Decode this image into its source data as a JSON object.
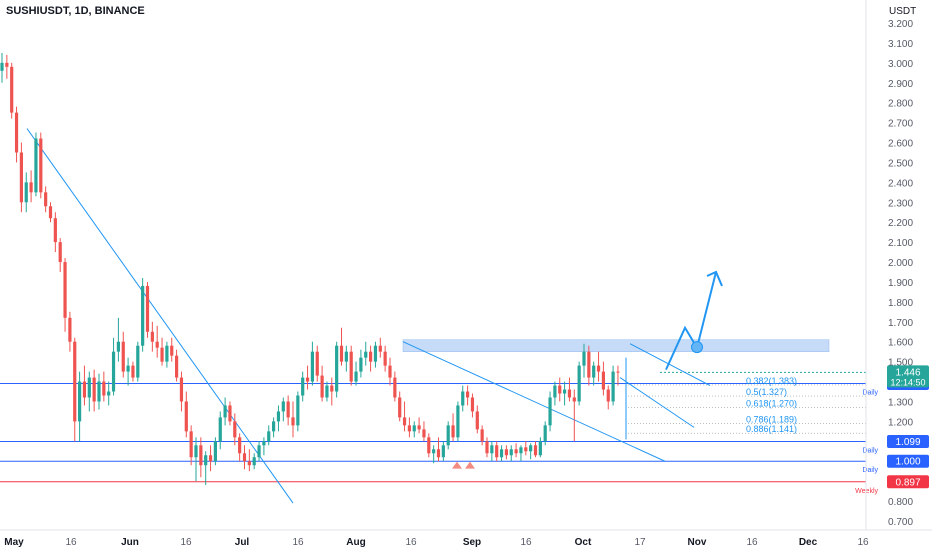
{
  "chart_data": {
    "type": "candlestick",
    "title": "SUSHIUSDT, 1D, BINANCE",
    "currency_label": "USDT",
    "y_range": [
      0.66,
      3.25
    ],
    "y_ticks": [
      "3.200",
      "3.100",
      "3.000",
      "2.900",
      "2.800",
      "2.700",
      "2.600",
      "2.500",
      "2.400",
      "2.300",
      "2.200",
      "2.100",
      "2.000",
      "1.900",
      "1.800",
      "1.700",
      "1.600",
      "1.500",
      "1.400",
      "1.300",
      "1.200",
      "1.100",
      "1.000",
      "0.900",
      "0.800",
      "0.700"
    ],
    "x_ticks": [
      "May",
      "16",
      "Jun",
      "16",
      "Jul",
      "16",
      "Aug",
      "16",
      "Sep",
      "16",
      "Oct",
      "17",
      "Nov",
      "16",
      "Dec",
      "16"
    ],
    "candles": [
      {
        "o": 2.96,
        "h": 3.05,
        "l": 2.9,
        "c": 3.0
      },
      {
        "o": 3.0,
        "h": 3.04,
        "l": 2.92,
        "c": 2.98
      },
      {
        "o": 2.98,
        "h": 3.0,
        "l": 2.72,
        "c": 2.75
      },
      {
        "o": 2.75,
        "h": 2.78,
        "l": 2.5,
        "c": 2.55
      },
      {
        "o": 2.55,
        "h": 2.6,
        "l": 2.25,
        "c": 2.3
      },
      {
        "o": 2.3,
        "h": 2.45,
        "l": 2.25,
        "c": 2.4
      },
      {
        "o": 2.4,
        "h": 2.46,
        "l": 2.3,
        "c": 2.35
      },
      {
        "o": 2.35,
        "h": 2.65,
        "l": 2.33,
        "c": 2.62
      },
      {
        "o": 2.62,
        "h": 2.65,
        "l": 2.32,
        "c": 2.35
      },
      {
        "o": 2.35,
        "h": 2.38,
        "l": 2.25,
        "c": 2.28
      },
      {
        "o": 2.28,
        "h": 2.3,
        "l": 2.2,
        "c": 2.22
      },
      {
        "o": 2.22,
        "h": 2.25,
        "l": 2.05,
        "c": 2.1
      },
      {
        "o": 2.1,
        "h": 2.12,
        "l": 1.95,
        "c": 2.0
      },
      {
        "o": 2.0,
        "h": 2.02,
        "l": 1.65,
        "c": 1.72
      },
      {
        "o": 1.72,
        "h": 1.75,
        "l": 1.55,
        "c": 1.6
      },
      {
        "o": 1.6,
        "h": 1.62,
        "l": 1.1,
        "c": 1.2
      },
      {
        "o": 1.2,
        "h": 1.45,
        "l": 1.1,
        "c": 1.4
      },
      {
        "o": 1.4,
        "h": 1.48,
        "l": 1.28,
        "c": 1.32
      },
      {
        "o": 1.32,
        "h": 1.45,
        "l": 1.25,
        "c": 1.42
      },
      {
        "o": 1.42,
        "h": 1.46,
        "l": 1.25,
        "c": 1.3
      },
      {
        "o": 1.3,
        "h": 1.44,
        "l": 1.26,
        "c": 1.4
      },
      {
        "o": 1.4,
        "h": 1.45,
        "l": 1.3,
        "c": 1.33
      },
      {
        "o": 1.33,
        "h": 1.4,
        "l": 1.28,
        "c": 1.35
      },
      {
        "o": 1.35,
        "h": 1.62,
        "l": 1.33,
        "c": 1.55
      },
      {
        "o": 1.55,
        "h": 1.72,
        "l": 1.5,
        "c": 1.6
      },
      {
        "o": 1.6,
        "h": 1.65,
        "l": 1.42,
        "c": 1.45
      },
      {
        "o": 1.45,
        "h": 1.52,
        "l": 1.38,
        "c": 1.48
      },
      {
        "o": 1.48,
        "h": 1.5,
        "l": 1.4,
        "c": 1.42
      },
      {
        "o": 1.42,
        "h": 1.6,
        "l": 1.4,
        "c": 1.58
      },
      {
        "o": 1.58,
        "h": 1.92,
        "l": 1.55,
        "c": 1.88
      },
      {
        "o": 1.88,
        "h": 1.9,
        "l": 1.62,
        "c": 1.65
      },
      {
        "o": 1.65,
        "h": 1.7,
        "l": 1.55,
        "c": 1.6
      },
      {
        "o": 1.6,
        "h": 1.68,
        "l": 1.52,
        "c": 1.57
      },
      {
        "o": 1.57,
        "h": 1.62,
        "l": 1.48,
        "c": 1.5
      },
      {
        "o": 1.5,
        "h": 1.6,
        "l": 1.47,
        "c": 1.58
      },
      {
        "o": 1.58,
        "h": 1.62,
        "l": 1.5,
        "c": 1.53
      },
      {
        "o": 1.53,
        "h": 1.56,
        "l": 1.4,
        "c": 1.42
      },
      {
        "o": 1.42,
        "h": 1.45,
        "l": 1.25,
        "c": 1.3
      },
      {
        "o": 1.3,
        "h": 1.35,
        "l": 1.12,
        "c": 1.15
      },
      {
        "o": 1.15,
        "h": 1.18,
        "l": 0.98,
        "c": 1.02
      },
      {
        "o": 1.02,
        "h": 1.12,
        "l": 0.9,
        "c": 1.08
      },
      {
        "o": 1.08,
        "h": 1.12,
        "l": 0.92,
        "c": 0.98
      },
      {
        "o": 0.98,
        "h": 1.05,
        "l": 0.88,
        "c": 1.03
      },
      {
        "o": 1.03,
        "h": 1.08,
        "l": 0.95,
        "c": 1.0
      },
      {
        "o": 1.0,
        "h": 1.12,
        "l": 0.98,
        "c": 1.1
      },
      {
        "o": 1.1,
        "h": 1.25,
        "l": 1.06,
        "c": 1.22
      },
      {
        "o": 1.22,
        "h": 1.32,
        "l": 1.18,
        "c": 1.28
      },
      {
        "o": 1.28,
        "h": 1.3,
        "l": 1.18,
        "c": 1.2
      },
      {
        "o": 1.2,
        "h": 1.24,
        "l": 1.08,
        "c": 1.12
      },
      {
        "o": 1.12,
        "h": 1.14,
        "l": 1.0,
        "c": 1.04
      },
      {
        "o": 1.04,
        "h": 1.08,
        "l": 0.96,
        "c": 1.0
      },
      {
        "o": 1.0,
        "h": 1.06,
        "l": 0.95,
        "c": 0.98
      },
      {
        "o": 0.98,
        "h": 1.04,
        "l": 0.96,
        "c": 1.02
      },
      {
        "o": 1.02,
        "h": 1.1,
        "l": 1.0,
        "c": 1.08
      },
      {
        "o": 1.08,
        "h": 1.12,
        "l": 1.03,
        "c": 1.1
      },
      {
        "o": 1.1,
        "h": 1.18,
        "l": 1.08,
        "c": 1.15
      },
      {
        "o": 1.15,
        "h": 1.22,
        "l": 1.12,
        "c": 1.2
      },
      {
        "o": 1.2,
        "h": 1.28,
        "l": 1.15,
        "c": 1.25
      },
      {
        "o": 1.25,
        "h": 1.32,
        "l": 1.2,
        "c": 1.3
      },
      {
        "o": 1.3,
        "h": 1.33,
        "l": 1.18,
        "c": 1.22
      },
      {
        "o": 1.22,
        "h": 1.3,
        "l": 1.12,
        "c": 1.18
      },
      {
        "o": 1.18,
        "h": 1.35,
        "l": 1.15,
        "c": 1.33
      },
      {
        "o": 1.33,
        "h": 1.45,
        "l": 1.3,
        "c": 1.42
      },
      {
        "o": 1.42,
        "h": 1.48,
        "l": 1.36,
        "c": 1.4
      },
      {
        "o": 1.4,
        "h": 1.6,
        "l": 1.38,
        "c": 1.55
      },
      {
        "o": 1.55,
        "h": 1.58,
        "l": 1.4,
        "c": 1.43
      },
      {
        "o": 1.43,
        "h": 1.48,
        "l": 1.3,
        "c": 1.32
      },
      {
        "o": 1.32,
        "h": 1.4,
        "l": 1.3,
        "c": 1.38
      },
      {
        "o": 1.38,
        "h": 1.42,
        "l": 1.28,
        "c": 1.35
      },
      {
        "o": 1.35,
        "h": 1.6,
        "l": 1.32,
        "c": 1.58
      },
      {
        "o": 1.58,
        "h": 1.67,
        "l": 1.48,
        "c": 1.5
      },
      {
        "o": 1.5,
        "h": 1.58,
        "l": 1.45,
        "c": 1.55
      },
      {
        "o": 1.55,
        "h": 1.58,
        "l": 1.38,
        "c": 1.4
      },
      {
        "o": 1.4,
        "h": 1.5,
        "l": 1.38,
        "c": 1.45
      },
      {
        "o": 1.45,
        "h": 1.56,
        "l": 1.42,
        "c": 1.52
      },
      {
        "o": 1.52,
        "h": 1.6,
        "l": 1.48,
        "c": 1.55
      },
      {
        "o": 1.55,
        "h": 1.58,
        "l": 1.45,
        "c": 1.5
      },
      {
        "o": 1.5,
        "h": 1.6,
        "l": 1.47,
        "c": 1.58
      },
      {
        "o": 1.58,
        "h": 1.62,
        "l": 1.52,
        "c": 1.55
      },
      {
        "o": 1.55,
        "h": 1.58,
        "l": 1.45,
        "c": 1.48
      },
      {
        "o": 1.48,
        "h": 1.52,
        "l": 1.38,
        "c": 1.42
      },
      {
        "o": 1.42,
        "h": 1.45,
        "l": 1.3,
        "c": 1.32
      },
      {
        "o": 1.32,
        "h": 1.35,
        "l": 1.2,
        "c": 1.22
      },
      {
        "o": 1.22,
        "h": 1.3,
        "l": 1.15,
        "c": 1.18
      },
      {
        "o": 1.18,
        "h": 1.22,
        "l": 1.12,
        "c": 1.15
      },
      {
        "o": 1.15,
        "h": 1.2,
        "l": 1.12,
        "c": 1.18
      },
      {
        "o": 1.18,
        "h": 1.22,
        "l": 1.14,
        "c": 1.16
      },
      {
        "o": 1.16,
        "h": 1.2,
        "l": 1.1,
        "c": 1.12
      },
      {
        "o": 1.12,
        "h": 1.14,
        "l": 1.02,
        "c": 1.04
      },
      {
        "o": 1.04,
        "h": 1.08,
        "l": 0.99,
        "c": 1.06
      },
      {
        "o": 1.06,
        "h": 1.12,
        "l": 1.0,
        "c": 1.02
      },
      {
        "o": 1.02,
        "h": 1.1,
        "l": 1.0,
        "c": 1.08
      },
      {
        "o": 1.08,
        "h": 1.2,
        "l": 1.06,
        "c": 1.18
      },
      {
        "o": 1.18,
        "h": 1.24,
        "l": 1.1,
        "c": 1.12
      },
      {
        "o": 1.12,
        "h": 1.3,
        "l": 1.1,
        "c": 1.28
      },
      {
        "o": 1.28,
        "h": 1.38,
        "l": 1.25,
        "c": 1.35
      },
      {
        "o": 1.35,
        "h": 1.38,
        "l": 1.28,
        "c": 1.32
      },
      {
        "o": 1.32,
        "h": 1.34,
        "l": 1.22,
        "c": 1.25
      },
      {
        "o": 1.25,
        "h": 1.28,
        "l": 1.14,
        "c": 1.16
      },
      {
        "o": 1.16,
        "h": 1.18,
        "l": 1.08,
        "c": 1.1
      },
      {
        "o": 1.1,
        "h": 1.12,
        "l": 1.02,
        "c": 1.04
      },
      {
        "o": 1.04,
        "h": 1.1,
        "l": 1.0,
        "c": 1.08
      },
      {
        "o": 1.08,
        "h": 1.1,
        "l": 1.0,
        "c": 1.02
      },
      {
        "o": 1.02,
        "h": 1.08,
        "l": 1.0,
        "c": 1.06
      },
      {
        "o": 1.06,
        "h": 1.08,
        "l": 1.01,
        "c": 1.03
      },
      {
        "o": 1.03,
        "h": 1.08,
        "l": 1.0,
        "c": 1.06
      },
      {
        "o": 1.06,
        "h": 1.09,
        "l": 1.02,
        "c": 1.04
      },
      {
        "o": 1.04,
        "h": 1.08,
        "l": 1.0,
        "c": 1.07
      },
      {
        "o": 1.07,
        "h": 1.1,
        "l": 1.03,
        "c": 1.05
      },
      {
        "o": 1.05,
        "h": 1.09,
        "l": 1.01,
        "c": 1.08
      },
      {
        "o": 1.08,
        "h": 1.1,
        "l": 1.02,
        "c": 1.03
      },
      {
        "o": 1.03,
        "h": 1.12,
        "l": 1.02,
        "c": 1.1
      },
      {
        "o": 1.1,
        "h": 1.2,
        "l": 1.08,
        "c": 1.18
      },
      {
        "o": 1.18,
        "h": 1.35,
        "l": 1.15,
        "c": 1.32
      },
      {
        "o": 1.32,
        "h": 1.4,
        "l": 1.28,
        "c": 1.38
      },
      {
        "o": 1.38,
        "h": 1.42,
        "l": 1.3,
        "c": 1.34
      },
      {
        "o": 1.34,
        "h": 1.4,
        "l": 1.28,
        "c": 1.36
      },
      {
        "o": 1.36,
        "h": 1.42,
        "l": 1.3,
        "c": 1.32
      },
      {
        "o": 1.32,
        "h": 1.36,
        "l": 1.1,
        "c": 1.3
      },
      {
        "o": 1.3,
        "h": 1.5,
        "l": 1.28,
        "c": 1.48
      },
      {
        "o": 1.48,
        "h": 1.59,
        "l": 1.42,
        "c": 1.55
      },
      {
        "o": 1.55,
        "h": 1.58,
        "l": 1.38,
        "c": 1.42
      },
      {
        "o": 1.42,
        "h": 1.5,
        "l": 1.38,
        "c": 1.48
      },
      {
        "o": 1.48,
        "h": 1.55,
        "l": 1.4,
        "c": 1.45
      },
      {
        "o": 1.45,
        "h": 1.5,
        "l": 1.33,
        "c": 1.36
      },
      {
        "o": 1.36,
        "h": 1.38,
        "l": 1.26,
        "c": 1.3
      },
      {
        "o": 1.3,
        "h": 1.48,
        "l": 1.28,
        "c": 1.45
      },
      {
        "o": 1.45,
        "h": 1.48,
        "l": 1.38,
        "c": 1.446
      }
    ],
    "horizontal_levels": [
      {
        "value": 1.39,
        "label": "Daily",
        "badge": "1.390",
        "color": "#2962ff"
      },
      {
        "value": 1.099,
        "label": "Daily",
        "badge": "1.099",
        "color": "#2962ff"
      },
      {
        "value": 1.0,
        "label": "Daily",
        "badge": "1.000",
        "color": "#2962ff"
      },
      {
        "value": 0.897,
        "label": "Weekly",
        "badge": "0.897",
        "color": "#f23645"
      }
    ],
    "resistance_zone": [
      1.55,
      1.61
    ],
    "fib_levels": [
      {
        "label": "0.382(1.383)",
        "value": 1.383
      },
      {
        "label": "0.5(1.327)",
        "value": 1.327
      },
      {
        "label": "0.618(1.270)",
        "value": 1.27
      },
      {
        "label": "0.786(1.189)",
        "value": 1.189
      },
      {
        "label": "0.886(1.141)",
        "value": 1.141
      }
    ],
    "current_price": {
      "value": 1.446,
      "price_text": "1.446",
      "timer_text": "12:14:50",
      "color": "#26a69a"
    },
    "colors": {
      "up": "#26a69a",
      "down": "#ef5350",
      "trendline": "#2196f3",
      "zone": "#bbd5f7",
      "text": "#131722",
      "axis_text": "#555a66"
    }
  }
}
